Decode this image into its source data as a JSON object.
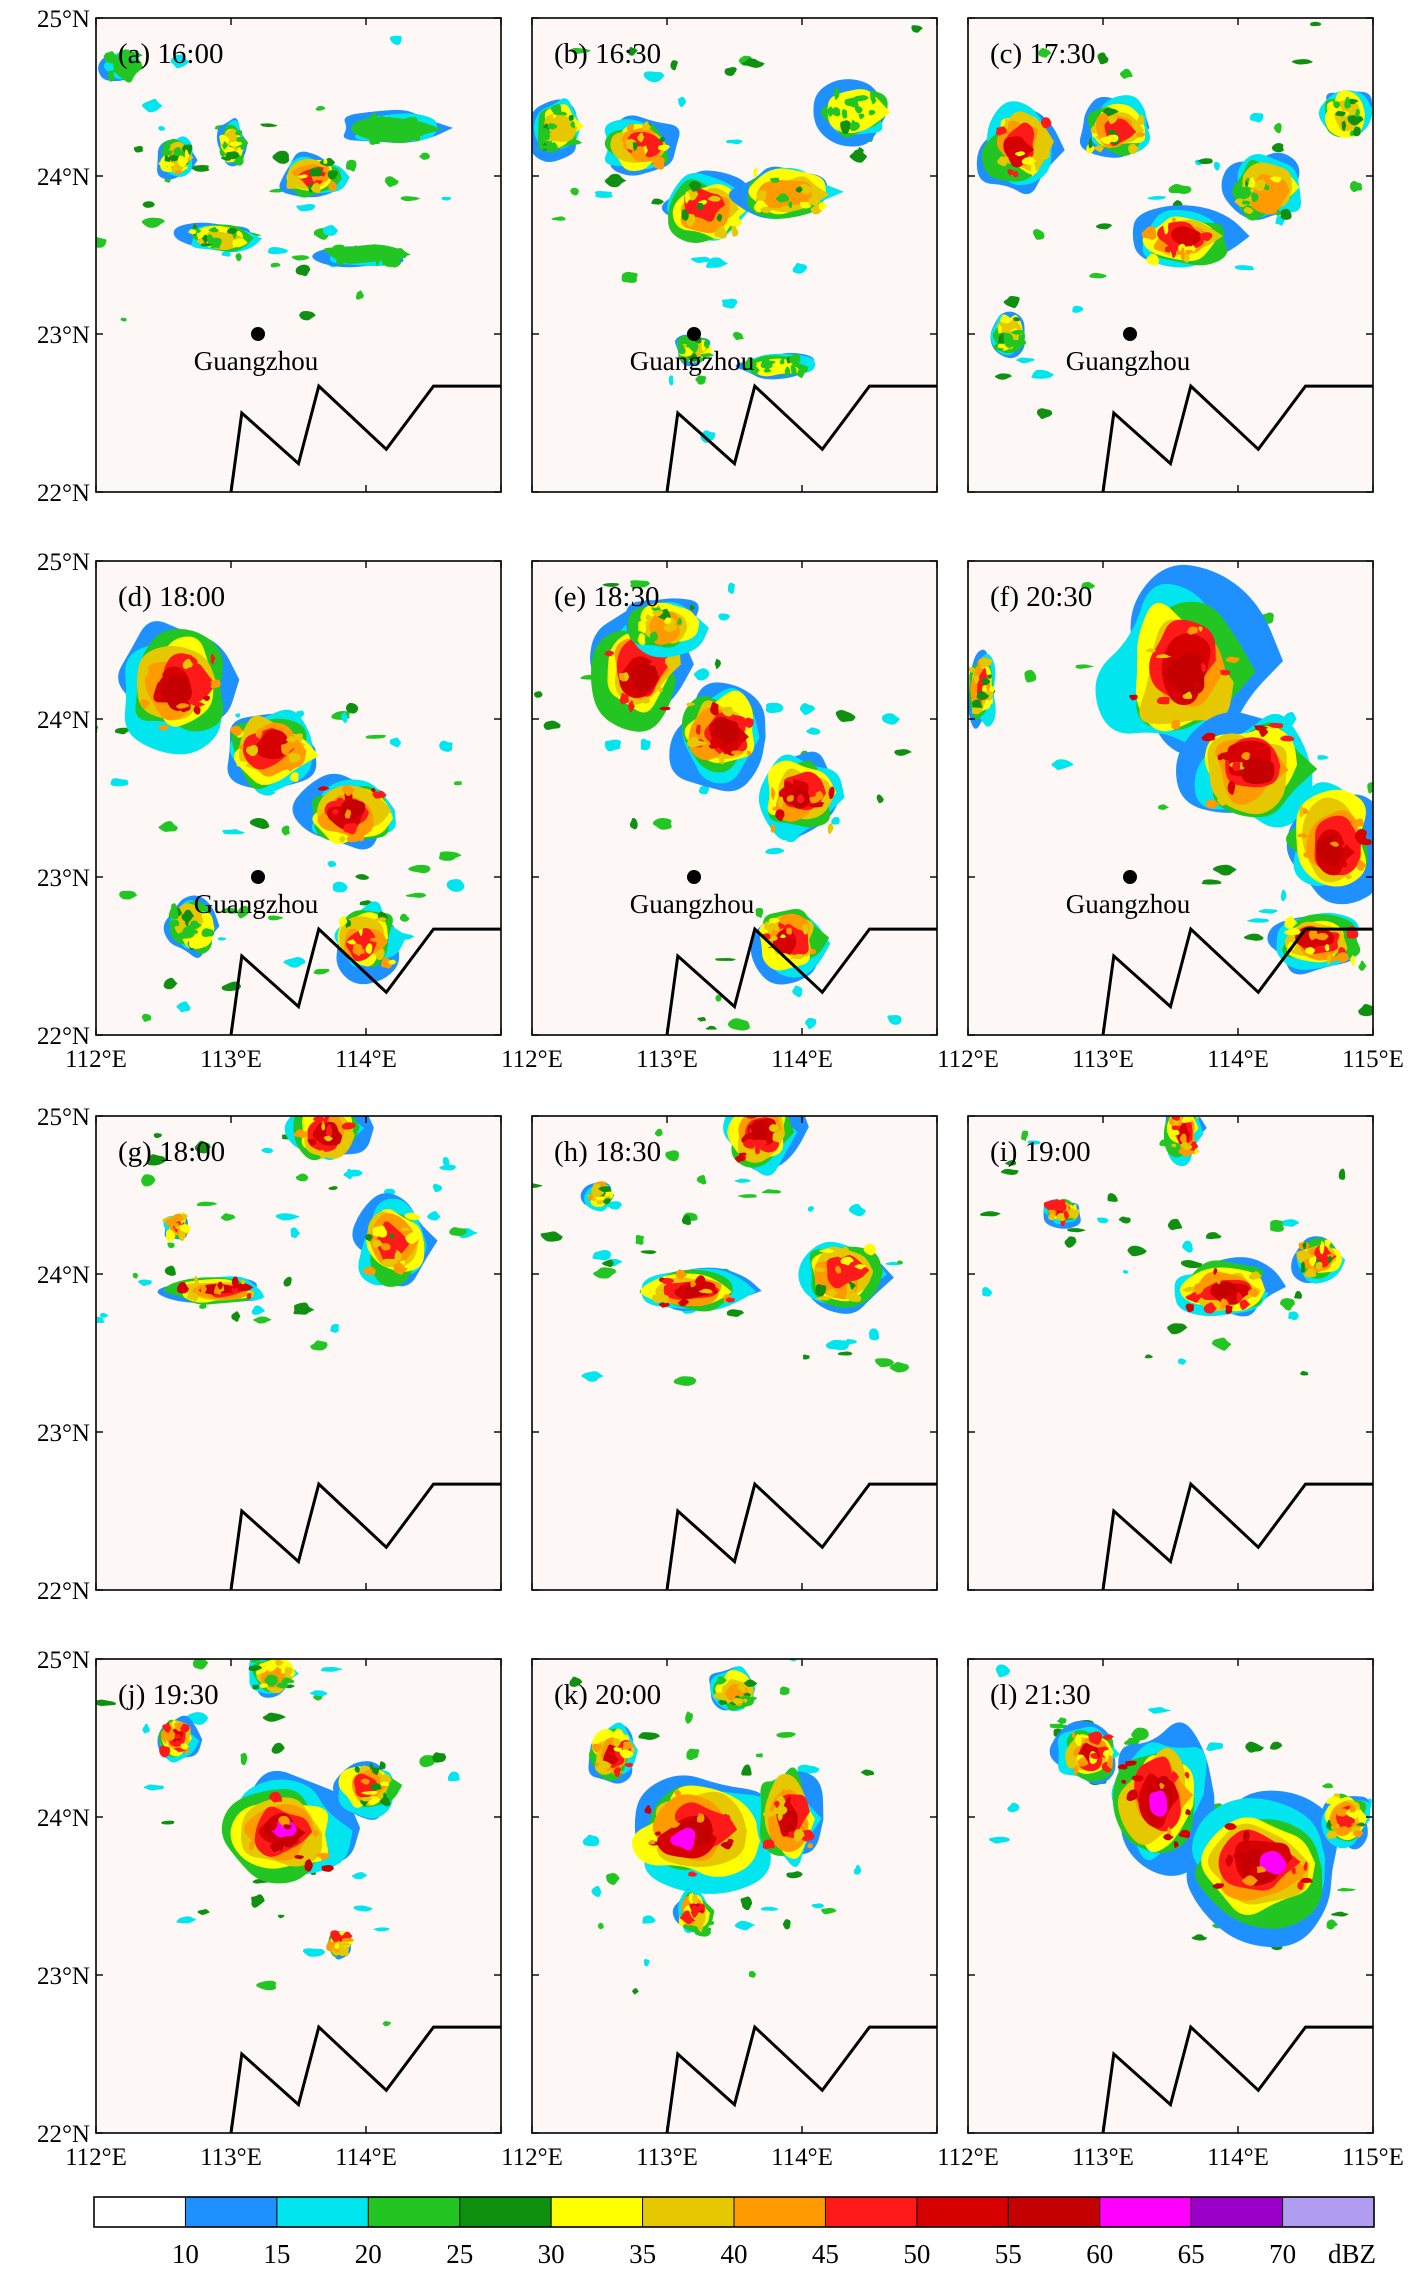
{
  "figure": {
    "panels": [
      {
        "label": "(a) 16:00",
        "show_city": true
      },
      {
        "label": "(b) 16:30",
        "show_city": true
      },
      {
        "label": "(c) 17:30",
        "show_city": true
      },
      {
        "label": "(d) 18:00",
        "show_city": true
      },
      {
        "label": "(e) 18:30",
        "show_city": true
      },
      {
        "label": "(f) 20:30",
        "show_city": true
      },
      {
        "label": "(g) 18:00",
        "show_city": false
      },
      {
        "label": "(h) 18:30",
        "show_city": false
      },
      {
        "label": "(i) 19:00",
        "show_city": false
      },
      {
        "label": "(j) 19:30",
        "show_city": false
      },
      {
        "label": "(k) 20:00",
        "show_city": false
      },
      {
        "label": "(l) 21:30",
        "show_city": false
      }
    ],
    "city": {
      "name": "Guangzhou",
      "lon": 113.2,
      "lat": 23.0
    },
    "lat_ticks": [
      "22°N",
      "23°N",
      "24°N",
      "25°N"
    ],
    "lon_ticks": [
      "112°E",
      "113°E",
      "114°E",
      "115°E"
    ],
    "lon_range": [
      112,
      115
    ],
    "lat_range": [
      22,
      25
    ],
    "colorbar": {
      "unit": "dBZ",
      "levels": [
        "10",
        "15",
        "20",
        "25",
        "30",
        "35",
        "40",
        "45",
        "50",
        "55",
        "60",
        "65",
        "70"
      ],
      "colors": [
        "#ffffff",
        "#1e90ff",
        "#00e5ee",
        "#22c522",
        "#109010",
        "#ffff00",
        "#e6c800",
        "#ff9a00",
        "#ff1a1a",
        "#d60000",
        "#c40000",
        "#ff00ff",
        "#9b00c8",
        "#b09cf0"
      ]
    }
  }
}
